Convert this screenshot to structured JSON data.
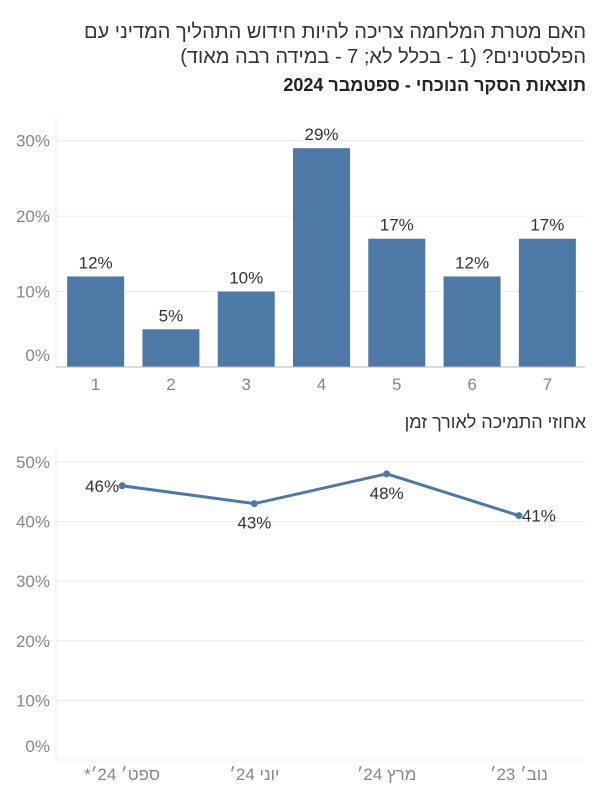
{
  "header": {
    "title": "האם מטרת המלחמה צריכה להיות חידוש התהליך המדיני עם הפלסטינים? (1 - בכלל לא; 7 - במידה רבה מאוד)",
    "subtitle": "תוצאות הסקר הנוכחי - ספטמבר 2024"
  },
  "colors": {
    "bar": "#4e79a7",
    "line": "#4e79a7",
    "grid": "#ececec",
    "axis": "#bbbbbb"
  },
  "chart_data": [
    {
      "type": "bar",
      "title": "תוצאות הסקר הנוכחי - ספטמבר 2024",
      "categories": [
        "1",
        "2",
        "3",
        "4",
        "5",
        "6",
        "7"
      ],
      "values": [
        12,
        5,
        10,
        29,
        17,
        12,
        17
      ],
      "data_labels": [
        "12%",
        "5%",
        "10%",
        "29%",
        "17%",
        "12%",
        "17%"
      ],
      "yticks": [
        0,
        10,
        20,
        30
      ],
      "ytick_labels": [
        "0%",
        "10%",
        "20%",
        "30%"
      ],
      "ylim": [
        0,
        33
      ],
      "grid": true
    },
    {
      "type": "line",
      "title": "אחוזי התמיכה לאורך זמן",
      "categories": [
        "ספט׳ 24׳*",
        "יוני 24׳",
        "מרץ 24׳",
        "נוב׳ 23׳"
      ],
      "values": [
        46,
        43,
        48,
        41
      ],
      "data_labels": [
        "46%",
        "43%",
        "48%",
        "41%"
      ],
      "yticks": [
        0,
        10,
        20,
        30,
        40,
        50
      ],
      "ytick_labels": [
        "0%",
        "10%",
        "20%",
        "30%",
        "40%",
        "50%"
      ],
      "ylim": [
        0,
        52
      ],
      "grid": true
    }
  ]
}
